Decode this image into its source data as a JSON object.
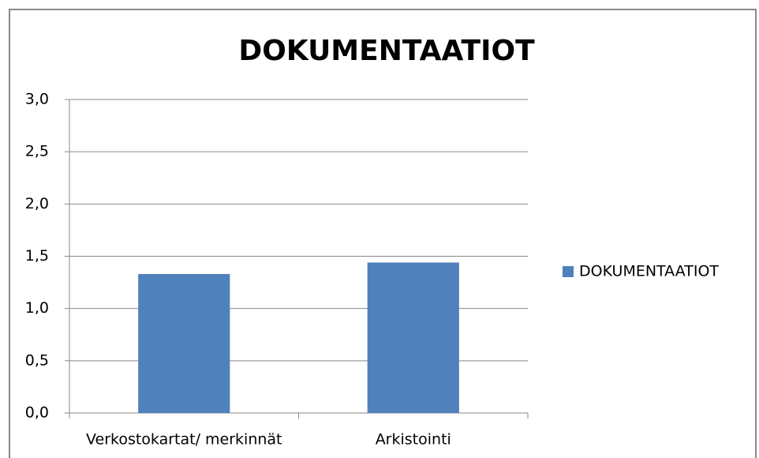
{
  "chart_data": {
    "type": "bar",
    "title": "DOKUMENTAATIOT",
    "categories": [
      "Verkostokartat/ merkinnät",
      "Arkistointi"
    ],
    "series": [
      {
        "name": "DOKUMENTAATIOT",
        "color": "#4f81bd",
        "values": [
          1.33,
          1.44
        ]
      }
    ],
    "ylim": [
      0,
      3
    ],
    "yticks": [
      {
        "value": 0,
        "label": "0,0"
      },
      {
        "value": 0.5,
        "label": "0,5"
      },
      {
        "value": 1,
        "label": "1,0"
      },
      {
        "value": 1.5,
        "label": "1,5"
      },
      {
        "value": 2,
        "label": "2,0"
      },
      {
        "value": 2.5,
        "label": "2,5"
      },
      {
        "value": 3,
        "label": "3,0"
      }
    ],
    "grid": true,
    "legend": "right"
  }
}
